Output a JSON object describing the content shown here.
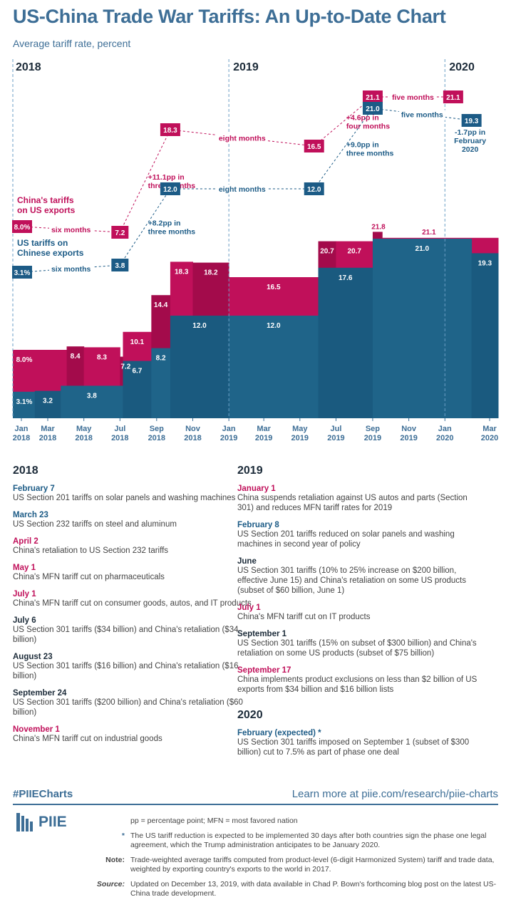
{
  "title": "US-China Trade War Tariffs: An Up-to-Date Chart",
  "subtitle": "Average tariff rate, percent",
  "chart_data": {
    "type": "area",
    "title": "US-China Trade War Tariffs: An Up-to-Date Chart",
    "ylabel": "Average tariff rate, percent",
    "year_headers": [
      "2018",
      "2019",
      "2020"
    ],
    "x_ticks": [
      {
        "m": "Jan",
        "y": "2018"
      },
      {
        "m": "Mar",
        "y": "2018"
      },
      {
        "m": "May",
        "y": "2018"
      },
      {
        "m": "Jul",
        "y": "2018"
      },
      {
        "m": "Sep",
        "y": "2018"
      },
      {
        "m": "Nov",
        "y": "2018"
      },
      {
        "m": "Jan",
        "y": "2019"
      },
      {
        "m": "Mar",
        "y": "2019"
      },
      {
        "m": "May",
        "y": "2019"
      },
      {
        "m": "Jul",
        "y": "2019"
      },
      {
        "m": "Sep",
        "y": "2019"
      },
      {
        "m": "Nov",
        "y": "2019"
      },
      {
        "m": "Jan",
        "y": "2020"
      },
      {
        "m": "Mar",
        "y": "2020"
      }
    ],
    "series": [
      {
        "name": "China's tariffs on US exports",
        "color": "#c0105a",
        "steps": [
          {
            "start": "2018-01-01",
            "end": "2018-04-02",
            "value": 8.0,
            "label": "8.0%"
          },
          {
            "start": "2018-04-02",
            "end": "2018-05-01",
            "value": 8.4,
            "label": "8.4"
          },
          {
            "start": "2018-05-01",
            "end": "2018-07-01",
            "value": 8.3,
            "label": "8.3"
          },
          {
            "start": "2018-07-01",
            "end": "2018-07-06",
            "value": 7.2,
            "label": "7.2"
          },
          {
            "start": "2018-07-06",
            "end": "2018-08-23",
            "value": 10.1,
            "label": "10.1"
          },
          {
            "start": "2018-08-23",
            "end": "2018-09-24",
            "value": 14.4,
            "label": "14.4"
          },
          {
            "start": "2018-09-24",
            "end": "2018-11-01",
            "value": 18.3,
            "label": "18.3"
          },
          {
            "start": "2018-11-01",
            "end": "2019-01-01",
            "value": 18.2,
            "label": "18.2"
          },
          {
            "start": "2019-01-01",
            "end": "2019-06-01",
            "value": 16.5,
            "label": "16.5"
          },
          {
            "start": "2019-06-01",
            "end": "2019-07-01",
            "value": 20.7,
            "label": "20.7"
          },
          {
            "start": "2019-07-01",
            "end": "2019-09-01",
            "value": 20.7,
            "label": "20.7"
          },
          {
            "start": "2019-09-01",
            "end": "2019-09-17",
            "value": 21.8,
            "label": "21.8"
          },
          {
            "start": "2019-09-17",
            "end": "2020-03-31",
            "value": 21.1,
            "label": "21.1"
          }
        ]
      },
      {
        "name": "US tariffs on Chinese exports",
        "color": "#1c5b86",
        "steps": [
          {
            "start": "2018-01-01",
            "end": "2018-02-07",
            "value": 3.1,
            "label": "3.1%"
          },
          {
            "start": "2018-02-07",
            "end": "2018-03-23",
            "value": 3.2,
            "label": "3.2"
          },
          {
            "start": "2018-03-23",
            "end": "2018-07-06",
            "value": 3.8,
            "label": "3.8"
          },
          {
            "start": "2018-07-06",
            "end": "2018-08-23",
            "value": 6.7,
            "label": "6.7"
          },
          {
            "start": "2018-08-23",
            "end": "2018-09-24",
            "value": 8.2,
            "label": "8.2"
          },
          {
            "start": "2018-09-24",
            "end": "2019-01-01",
            "value": 12.0,
            "label": "12.0"
          },
          {
            "start": "2019-01-01",
            "end": "2019-06-01",
            "value": 12.0,
            "label": "12.0"
          },
          {
            "start": "2019-06-01",
            "end": "2019-09-01",
            "value": 17.6,
            "label": "17.6"
          },
          {
            "start": "2019-09-01",
            "end": "2020-02-15",
            "value": 21.0,
            "label": "21.0"
          },
          {
            "start": "2020-02-15",
            "end": "2020-03-31",
            "value": 19.3,
            "label": "19.3"
          }
        ]
      }
    ],
    "ylim": [
      0,
      36
    ],
    "legend": [
      {
        "text_1": "China's tariffs",
        "text_2": "on US exports",
        "color": "#c0105a"
      },
      {
        "text_1": "US tariffs on",
        "text_2": "Chinese exports",
        "color": "#1c5b86"
      }
    ],
    "annotations": {
      "china": {
        "color": "#c0105a",
        "boxes": [
          {
            "date": "2018-01-01",
            "label": "8.0%"
          },
          {
            "date": "2018-07-01",
            "label": "7.2"
          },
          {
            "date": "2018-09-24",
            "label": "18.3"
          },
          {
            "date": "2019-05-25",
            "label": "16.5"
          },
          {
            "date": "2019-09-01",
            "label": "21.1"
          },
          {
            "date": "2020-01-15",
            "label": "21.1"
          }
        ],
        "segments": [
          {
            "from": 0,
            "to": 1,
            "label": "six months",
            "style": "flat"
          },
          {
            "from": 1,
            "to": 2,
            "label": "+11.1pp in|three months",
            "style": "rise"
          },
          {
            "from": 2,
            "to": 3,
            "label": "eight months",
            "style": "flat"
          },
          {
            "from": 3,
            "to": 4,
            "label": "+4.6pp in|four months",
            "style": "rise"
          },
          {
            "from": 4,
            "to": 5,
            "label": "five months",
            "style": "flat"
          }
        ]
      },
      "us": {
        "color": "#1c5b86",
        "boxes": [
          {
            "date": "2018-01-01",
            "label": "3.1%"
          },
          {
            "date": "2018-07-01",
            "label": "3.8"
          },
          {
            "date": "2018-09-24",
            "label": "12.0"
          },
          {
            "date": "2019-05-25",
            "label": "12.0"
          },
          {
            "date": "2019-09-01",
            "label": "21.0"
          },
          {
            "date": "2020-02-15",
            "label": "19.3"
          }
        ],
        "segments": [
          {
            "from": 0,
            "to": 1,
            "label": "six months",
            "style": "flat"
          },
          {
            "from": 1,
            "to": 2,
            "label": "+8.2pp in|three months",
            "style": "rise"
          },
          {
            "from": 2,
            "to": 3,
            "label": "eight months",
            "style": "flat"
          },
          {
            "from": 3,
            "to": 4,
            "label": "+9.0pp in|three months",
            "style": "rise"
          },
          {
            "from": 4,
            "to": 5,
            "label": "five months",
            "style": "flat"
          }
        ],
        "final_note": "-1.7pp in|February|2020"
      }
    }
  },
  "events_2018": {
    "heading": "2018",
    "items": [
      {
        "date": "February 7",
        "kind": "us",
        "desc": "US Section 201 tariffs on solar panels and washing machines"
      },
      {
        "date": "March 23",
        "kind": "us",
        "desc": "US Section 232 tariffs on steel and aluminum"
      },
      {
        "date": "April 2",
        "kind": "cn",
        "desc": "China's retaliation to US Section 232 tariffs"
      },
      {
        "date": "May 1",
        "kind": "cn",
        "desc": "China's MFN tariff cut on pharmaceuticals"
      },
      {
        "date": "July 1",
        "kind": "cn",
        "desc": "China's MFN tariff cut on consumer goods, autos, and IT products"
      },
      {
        "date": "July 6",
        "kind": "dk",
        "desc": "US Section 301 tariffs ($34 billion) and China's retaliation ($34 billion)"
      },
      {
        "date": "August 23",
        "kind": "dk",
        "desc": "US Section 301 tariffs ($16 billion) and China's retaliation ($16 billion)"
      },
      {
        "date": "September 24",
        "kind": "dk",
        "desc": "US Section 301 tariffs ($200 billion) and China's retaliation ($60 billion)"
      },
      {
        "date": "November 1",
        "kind": "cn",
        "desc": "China's MFN tariff cut on industrial goods"
      }
    ]
  },
  "events_2019": {
    "heading": "2019",
    "items": [
      {
        "date": "January 1",
        "kind": "cn",
        "desc": "China suspends retaliation against US autos and parts (Section 301) and reduces MFN tariff rates for 2019"
      },
      {
        "date": "February 8",
        "kind": "us",
        "desc": "US Section 201 tariffs reduced on solar panels and washing machines in second year of policy"
      },
      {
        "date": "June",
        "kind": "dk",
        "desc": "US Section 301 tariffs (10% to 25% increase on $200 billion, effective June 15) and China's retaliation on some US products (subset of $60 billion, June 1)"
      },
      {
        "date": "July 1",
        "kind": "cn",
        "desc": "China's MFN tariff cut on IT products"
      },
      {
        "date": "September 1",
        "kind": "dk",
        "desc": "US Section 301 tariffs (15% on subset of $300 billion) and China's retaliation on some US products (subset of $75 billion)"
      },
      {
        "date": "September 17",
        "kind": "cn",
        "desc": "China implements product exclusions on less than $2 billion of US exports from $34 billion and $16 billion lists"
      }
    ]
  },
  "events_2020": {
    "heading": "2020",
    "items": [
      {
        "date": "February (expected) *",
        "kind": "us",
        "desc": "US Section 301 tariffs imposed on September 1 (subset of $300 billion) cut to 7.5% as part of phase one deal"
      }
    ]
  },
  "footer": {
    "hashtag": "#PIIECharts",
    "link": "Learn more at piie.com/research/piie-charts",
    "logo_text": "PIIE",
    "abbrev": "pp = percentage point; MFN = most favored nation",
    "star_mark": "*",
    "star_note": "The US tariff reduction is expected to be implemented 30 days after both countries sign the phase one legal agreement, which the Trump administration anticipates to be January 2020.",
    "note_label": "Note:",
    "note": "Trade-weighted average tariffs computed from product-level (6-digit Harmonized System) tariff and trade data, weighted by exporting country's exports to the world in 2017.",
    "source_label": "Source:",
    "source": "Updated on December 13, 2019, with data available in Chad P. Bown's forthcoming blog post on the latest US-China trade development."
  }
}
